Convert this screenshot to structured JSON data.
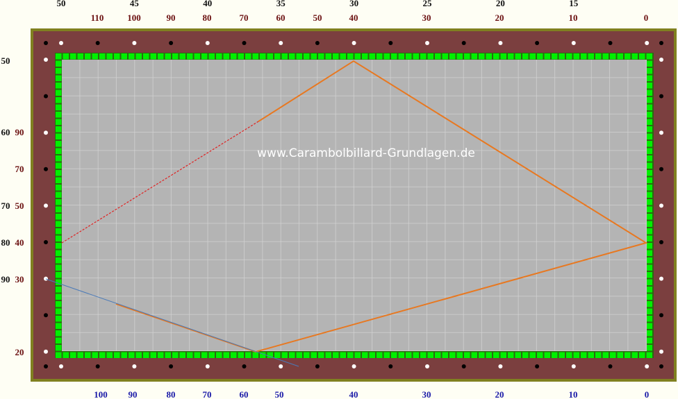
{
  "watermark": "www.Carambolbillard-Grundlagen.de",
  "colors": {
    "rail": "#7b3f3f",
    "frame": "#808020",
    "cushion": "#00ff00",
    "cloth": "#b4b4b4",
    "ball_path": "#e87820",
    "aim_line": "#e02020",
    "cue_line": "#4a7ab8"
  },
  "top_labels_black": [
    "50",
    "45",
    "40",
    "35",
    "30",
    "25",
    "20",
    "15"
  ],
  "top_labels_red": [
    "110",
    "100",
    "90",
    "80",
    "70",
    "60",
    "50",
    "40",
    "30",
    "20",
    "10",
    "0"
  ],
  "left_labels_black": [
    "50",
    "60",
    "70",
    "80",
    "90"
  ],
  "left_labels_red": [
    "90",
    "70",
    "50",
    "40",
    "30",
    "20"
  ],
  "bottom_labels_blue": [
    "100",
    "90",
    "80",
    "70",
    "60",
    "50",
    "40",
    "30",
    "20",
    "10",
    "0"
  ]
}
